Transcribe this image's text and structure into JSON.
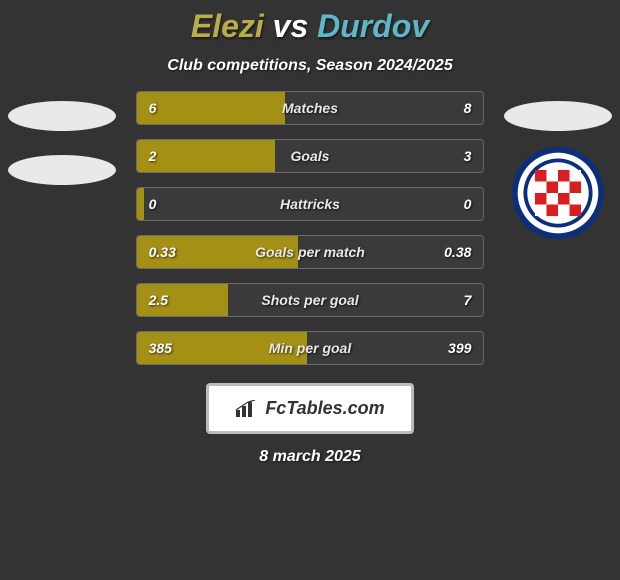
{
  "title": {
    "player_a": "Elezi",
    "vs": "vs",
    "player_b": "Durdov"
  },
  "subtitle": "Club competitions, Season 2024/2025",
  "colors": {
    "player_a": "#b9ad4a",
    "player_b": "#5fb7c5",
    "bar_fill": "#a59016",
    "bar_bg": "#3a3a3a",
    "bar_border": "#6a6a6a",
    "page_bg": "#333333",
    "text": "#ffffff"
  },
  "bars": [
    {
      "label": "Matches",
      "left": "6",
      "right": "8",
      "left_pct": 42.9
    },
    {
      "label": "Goals",
      "left": "2",
      "right": "3",
      "left_pct": 40.0
    },
    {
      "label": "Hattricks",
      "left": "0",
      "right": "0",
      "left_pct": 2.0
    },
    {
      "label": "Goals per match",
      "left": "0.33",
      "right": "0.38",
      "left_pct": 46.5
    },
    {
      "label": "Shots per goal",
      "left": "2.5",
      "right": "7",
      "left_pct": 26.3
    },
    {
      "label": "Min per goal",
      "left": "385",
      "right": "399",
      "left_pct": 49.1
    }
  ],
  "footer": {
    "brand": "FcTables.com",
    "date": "8 march 2025"
  },
  "crest_right": {
    "name": "Hajduk Split",
    "ring_color": "#0b2f7a",
    "check_red": "#d81e1e",
    "check_white": "#ffffff",
    "band_color": "#ffffff"
  }
}
